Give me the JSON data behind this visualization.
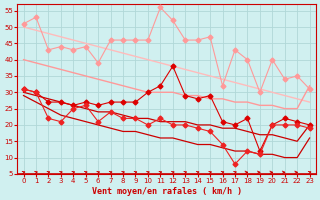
{
  "title": "",
  "xlabel": "Vent moyen/en rafales ( km/h )",
  "xlim": [
    -0.5,
    23.5
  ],
  "ylim": [
    5,
    57
  ],
  "yticks": [
    5,
    10,
    15,
    20,
    25,
    30,
    35,
    40,
    45,
    50,
    55
  ],
  "xticks": [
    0,
    1,
    2,
    3,
    4,
    5,
    6,
    7,
    8,
    9,
    10,
    11,
    12,
    13,
    14,
    15,
    16,
    17,
    18,
    19,
    20,
    21,
    22,
    23
  ],
  "bg_color": "#d0f0f0",
  "grid_color": "#b0d8d8",
  "x": [
    0,
    1,
    2,
    3,
    4,
    5,
    6,
    7,
    8,
    9,
    10,
    11,
    12,
    13,
    14,
    15,
    16,
    17,
    18,
    19,
    20,
    21,
    22,
    23
  ],
  "line_rafales_markers_y": [
    51,
    53,
    43,
    44,
    43,
    44,
    39,
    46,
    46,
    46,
    46,
    56,
    52,
    46,
    46,
    47,
    32,
    43,
    40,
    30,
    40,
    34,
    35,
    31
  ],
  "line_rafales_markers_color": "#ff9999",
  "line_rafales_markers_ms": 2.5,
  "line_rafales_trend_y": [
    50,
    49,
    48,
    47,
    46,
    45,
    44,
    43,
    42,
    41,
    40,
    39,
    38,
    37,
    36,
    35,
    34,
    33,
    32,
    31,
    30,
    29,
    28,
    27
  ],
  "line_rafales_trend_color": "#ffbbbb",
  "line_moyen_high_y": [
    40,
    39,
    38,
    37,
    36,
    35,
    34,
    33,
    32,
    31,
    30,
    30,
    30,
    29,
    29,
    28,
    28,
    27,
    27,
    26,
    26,
    25,
    25,
    32
  ],
  "line_moyen_high_color": "#ff9999",
  "line_vent_markers_y": [
    31,
    30,
    27,
    27,
    26,
    27,
    26,
    27,
    27,
    27,
    30,
    32,
    38,
    29,
    28,
    29,
    21,
    20,
    22,
    12,
    20,
    22,
    21,
    20
  ],
  "line_vent_markers_color": "#dd0000",
  "line_vent_markers_ms": 2.5,
  "line_vent_trend1_y": [
    30,
    29,
    28,
    27,
    26,
    25,
    24,
    24,
    23,
    22,
    22,
    21,
    21,
    21,
    20,
    20,
    19,
    19,
    18,
    17,
    17,
    16,
    15,
    20
  ],
  "line_vent_trend1_color": "#cc0000",
  "line_vent_trend2_y": [
    29,
    27,
    25,
    23,
    22,
    21,
    20,
    19,
    18,
    18,
    17,
    16,
    16,
    15,
    14,
    14,
    13,
    12,
    12,
    11,
    11,
    10,
    10,
    16
  ],
  "line_vent_trend2_color": "#cc0000",
  "line_vent_low_markers_y": [
    31,
    30,
    22,
    21,
    25,
    26,
    21,
    24,
    22,
    22,
    20,
    22,
    20,
    20,
    19,
    18,
    14,
    8,
    12,
    11,
    20,
    20,
    20,
    19
  ],
  "line_vent_low_markers_color": "#ee2222",
  "line_vent_low_markers_ms": 2.5,
  "wind_dirs_ne": [
    0,
    1,
    2,
    3,
    4,
    5,
    6,
    7,
    8,
    9,
    10,
    11,
    12,
    13,
    14,
    15,
    16,
    17,
    18,
    19,
    20,
    21,
    22,
    23
  ],
  "wind_dir_degrees": [
    45,
    45,
    45,
    45,
    45,
    45,
    45,
    45,
    45,
    45,
    45,
    45,
    45,
    45,
    45,
    45,
    45,
    45,
    90,
    90,
    90,
    90,
    90,
    45
  ],
  "arrow_color": "#cc0000",
  "tick_color": "#cc0000",
  "spine_color": "#cc0000",
  "xlabel_color": "#cc0000"
}
